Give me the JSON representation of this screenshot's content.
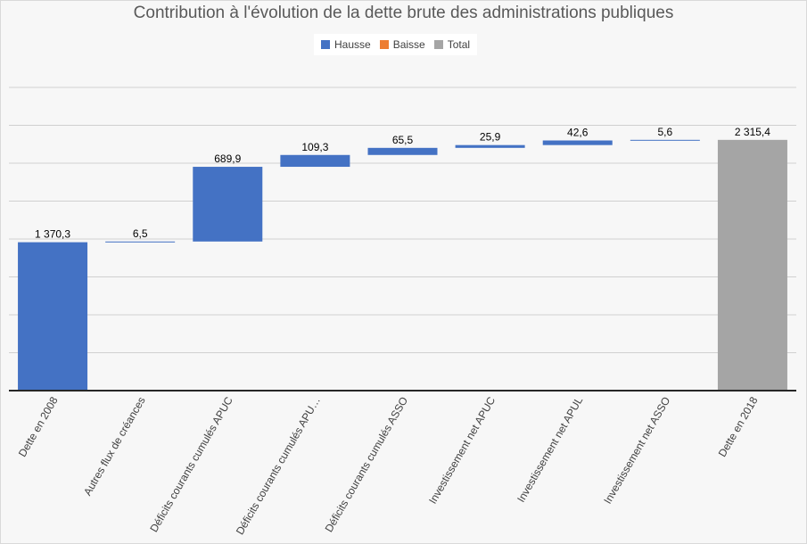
{
  "chart_data": {
    "type": "waterfall",
    "title": "Contribution à l'évolution de la dette brute des administrations publiques",
    "legend": [
      {
        "name": "Hausse",
        "color": "#4472c4"
      },
      {
        "name": "Baisse",
        "color": "#ed7d31"
      },
      {
        "name": "Total",
        "color": "#a5a5a5"
      }
    ],
    "legend_position": "top",
    "categories": [
      "Dette en 2008",
      "Autres flux de créances",
      "Déficits courants cumulés APUC",
      "Déficits courants cumulés APU…",
      "Déficits courants cumulés ASSO",
      "Investissement net APUC",
      "Investissement net APUL",
      "Investissement net ASSO",
      "Dette en 2018"
    ],
    "values": [
      1370.3,
      6.5,
      689.9,
      109.3,
      65.5,
      25.9,
      42.6,
      5.6,
      2315.4
    ],
    "kinds": [
      "total",
      "hausse",
      "hausse",
      "hausse",
      "hausse",
      "hausse",
      "hausse",
      "hausse",
      "total"
    ],
    "value_labels": [
      "1 370,3",
      "6,5",
      "689,9",
      "109,3",
      "65,5",
      "25,9",
      "42,6",
      "5,6",
      "2 315,4"
    ],
    "bar_colors": [
      "#4472c4",
      "#4472c4",
      "#4472c4",
      "#4472c4",
      "#4472c4",
      "#4472c4",
      "#4472c4",
      "#4472c4",
      "#a5a5a5"
    ],
    "ylim": [
      0,
      2800
    ],
    "grid": true,
    "gridline_step": 350,
    "y_tick_labels_visible": false
  }
}
